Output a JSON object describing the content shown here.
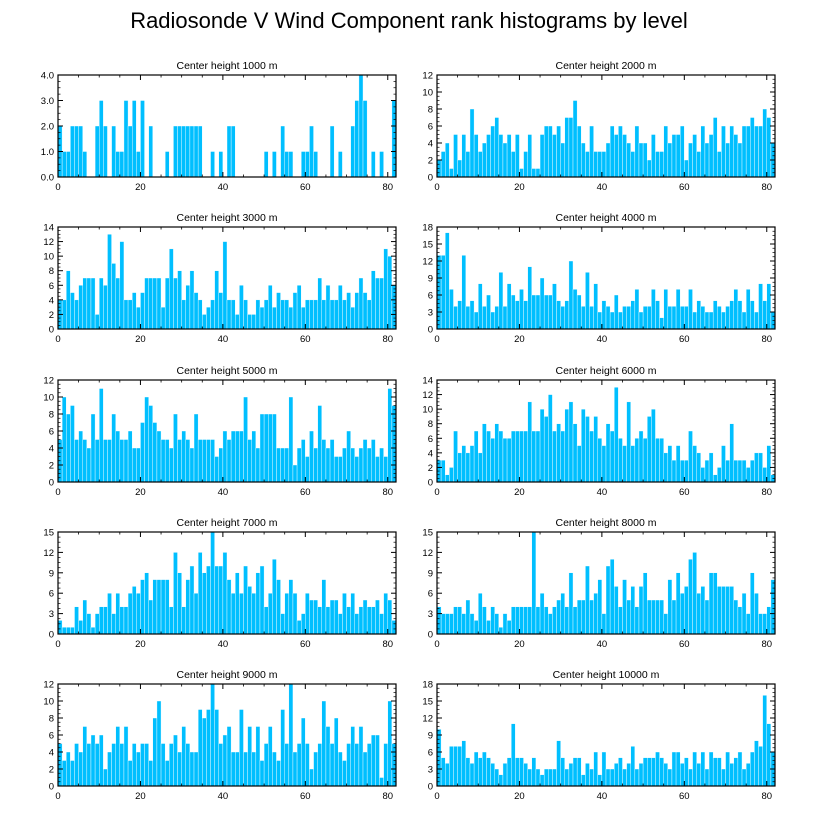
{
  "figure": {
    "title": "Radiosonde V Wind Component rank histograms by level",
    "bar_color": "#00bfff",
    "bar_outline": "#ffffff",
    "axis_color": "#000000"
  },
  "chart_data": [
    {
      "type": "bar",
      "title": "Center height 1000 m",
      "xlim": [
        0,
        82
      ],
      "ylim": [
        0,
        4
      ],
      "xticks": [
        0,
        20,
        40,
        60,
        80
      ],
      "yticks": [
        0,
        1,
        2,
        3,
        4
      ],
      "ytick_labels": [
        "0.0",
        "1.0",
        "2.0",
        "3.0",
        "4.0"
      ],
      "values": [
        2,
        1,
        1,
        2,
        2,
        2,
        1,
        0,
        0,
        2,
        3,
        2,
        0,
        2,
        1,
        1,
        3,
        2,
        3,
        1,
        3,
        0,
        2,
        0,
        0,
        0,
        1,
        0,
        2,
        2,
        2,
        2,
        2,
        2,
        2,
        0,
        0,
        1,
        0,
        1,
        0,
        2,
        2,
        0,
        0,
        0,
        0,
        0,
        0,
        0,
        1,
        0,
        1,
        0,
        2,
        1,
        1,
        0,
        0,
        1,
        1,
        2,
        1,
        0,
        0,
        0,
        2,
        0,
        1,
        0,
        0,
        2,
        3,
        4,
        3,
        0,
        1,
        0,
        1,
        0,
        0,
        3
      ]
    },
    {
      "type": "bar",
      "title": "Center height 2000 m",
      "xlim": [
        0,
        82
      ],
      "ylim": [
        0,
        12
      ],
      "xticks": [
        0,
        20,
        40,
        60,
        80
      ],
      "yticks": [
        0,
        2,
        4,
        6,
        8,
        10,
        12
      ],
      "ytick_labels": [
        "0",
        "2",
        "4",
        "6",
        "8",
        "10",
        "12"
      ],
      "values": [
        2,
        3,
        4,
        1,
        5,
        2,
        5,
        3,
        8,
        5,
        3,
        4,
        5,
        6,
        7,
        5,
        4,
        5,
        3,
        5,
        1,
        3,
        5,
        1,
        1,
        5,
        6,
        6,
        5,
        6,
        4,
        7,
        7,
        9,
        6,
        4,
        3,
        6,
        3,
        3,
        3,
        4,
        6,
        5,
        6,
        5,
        4,
        3,
        6,
        4,
        4,
        2,
        5,
        3,
        3,
        6,
        4,
        5,
        5,
        6,
        2,
        4,
        5,
        3,
        6,
        4,
        5,
        7,
        3,
        6,
        4,
        6,
        5,
        4,
        6,
        6,
        7,
        6,
        6,
        8,
        7,
        4,
        11
      ]
    },
    {
      "type": "bar",
      "title": "Center height 3000 m",
      "xlim": [
        0,
        82
      ],
      "ylim": [
        0,
        14
      ],
      "xticks": [
        0,
        20,
        40,
        60,
        80
      ],
      "yticks": [
        0,
        2,
        4,
        6,
        8,
        10,
        12,
        14
      ],
      "ytick_labels": [
        "0",
        "2",
        "4",
        "6",
        "8",
        "10",
        "12",
        "14"
      ],
      "values": [
        4,
        4,
        8,
        5,
        4,
        6,
        7,
        7,
        7,
        2,
        7,
        6,
        13,
        9,
        7,
        12,
        4,
        4,
        5,
        3,
        5,
        7,
        7,
        7,
        7,
        3,
        7,
        11,
        7,
        8,
        4,
        6,
        8,
        5,
        4,
        2,
        3,
        4,
        8,
        5,
        12,
        4,
        4,
        2,
        6,
        4,
        2,
        2,
        4,
        3,
        4,
        6,
        3,
        5,
        4,
        4,
        3,
        5,
        6,
        3,
        4,
        4,
        4,
        7,
        4,
        6,
        4,
        4,
        6,
        4,
        5,
        3,
        5,
        7,
        5,
        4,
        8,
        7,
        7,
        11,
        10,
        6
      ]
    },
    {
      "type": "bar",
      "title": "Center height 4000 m",
      "xlim": [
        0,
        82
      ],
      "ylim": [
        0,
        18
      ],
      "xticks": [
        0,
        20,
        40,
        60,
        80
      ],
      "yticks": [
        0,
        3,
        6,
        9,
        12,
        15,
        18
      ],
      "ytick_labels": [
        "0",
        "3",
        "6",
        "9",
        "12",
        "15",
        "18"
      ],
      "values": [
        13,
        13,
        17,
        7,
        4,
        5,
        13,
        4,
        5,
        3,
        8,
        4,
        6,
        3,
        4,
        10,
        4,
        8,
        6,
        5,
        7,
        5,
        11,
        6,
        6,
        9,
        6,
        6,
        8,
        5,
        4,
        5,
        12,
        7,
        6,
        4,
        10,
        4,
        8,
        3,
        5,
        4,
        3,
        6,
        3,
        4,
        4,
        5,
        7,
        3,
        4,
        4,
        7,
        5,
        2,
        7,
        4,
        4,
        7,
        4,
        4,
        7,
        3,
        5,
        4,
        3,
        3,
        5,
        4,
        3,
        4,
        5,
        7,
        5,
        3,
        7,
        5,
        3,
        8,
        5,
        8,
        3,
        3
      ]
    },
    {
      "type": "bar",
      "title": "Center height 5000 m",
      "xlim": [
        0,
        82
      ],
      "ylim": [
        0,
        12
      ],
      "xticks": [
        0,
        20,
        40,
        60,
        80
      ],
      "yticks": [
        0,
        2,
        4,
        6,
        8,
        10,
        12
      ],
      "ytick_labels": [
        "0",
        "2",
        "4",
        "6",
        "8",
        "10",
        "12"
      ],
      "values": [
        5,
        10,
        8,
        9,
        5,
        6,
        5,
        4,
        8,
        5,
        11,
        5,
        5,
        8,
        6,
        5,
        5,
        6,
        4,
        4,
        7,
        10,
        9,
        7,
        6,
        5,
        5,
        4,
        8,
        5,
        6,
        5,
        4,
        8,
        5,
        5,
        5,
        5,
        3,
        4,
        6,
        5,
        6,
        6,
        6,
        10,
        5,
        6,
        4,
        8,
        8,
        8,
        8,
        4,
        4,
        4,
        10,
        2,
        4,
        5,
        3,
        6,
        4,
        9,
        5,
        4,
        5,
        3,
        3,
        4,
        6,
        4,
        3,
        4,
        5,
        4,
        5,
        3,
        4,
        3,
        11,
        9
      ]
    },
    {
      "type": "bar",
      "title": "Center height 6000 m",
      "xlim": [
        0,
        82
      ],
      "ylim": [
        0,
        14
      ],
      "xticks": [
        0,
        20,
        40,
        60,
        80
      ],
      "yticks": [
        0,
        2,
        4,
        6,
        8,
        10,
        12,
        14
      ],
      "ytick_labels": [
        "0",
        "2",
        "4",
        "6",
        "8",
        "10",
        "12",
        "14"
      ],
      "values": [
        3,
        3,
        1,
        2,
        7,
        4,
        5,
        4,
        5,
        7,
        4,
        8,
        7,
        6,
        8,
        7,
        6,
        6,
        7,
        7,
        7,
        7,
        11,
        7,
        7,
        10,
        9,
        12,
        7,
        8,
        7,
        10,
        11,
        8,
        5,
        10,
        9,
        7,
        9,
        6,
        5,
        8,
        7,
        13,
        6,
        5,
        11,
        5,
        6,
        7,
        6,
        9,
        10,
        6,
        6,
        4,
        5,
        3,
        5,
        3,
        3,
        7,
        5,
        4,
        2,
        3,
        4,
        1,
        2,
        5,
        3,
        8,
        3,
        3,
        3,
        2,
        3,
        4,
        4,
        2,
        5,
        1
      ]
    },
    {
      "type": "bar",
      "title": "Center height 7000 m",
      "xlim": [
        0,
        82
      ],
      "ylim": [
        0,
        15
      ],
      "xticks": [
        0,
        20,
        40,
        60,
        80
      ],
      "yticks": [
        0,
        3,
        6,
        9,
        12,
        15
      ],
      "ytick_labels": [
        "0",
        "3",
        "6",
        "9",
        "12",
        "15"
      ],
      "values": [
        2,
        1,
        1,
        1,
        4,
        2,
        5,
        3,
        1,
        3,
        4,
        4,
        6,
        3,
        6,
        4,
        4,
        6,
        7,
        6,
        8,
        9,
        5,
        8,
        8,
        8,
        8,
        4,
        12,
        9,
        4,
        8,
        10,
        6,
        12,
        9,
        10,
        15,
        10,
        10,
        12,
        8,
        6,
        9,
        6,
        10,
        7,
        6,
        9,
        10,
        4,
        6,
        11,
        8,
        3,
        6,
        8,
        6,
        2,
        3,
        6,
        5,
        5,
        4,
        8,
        4,
        5,
        5,
        3,
        6,
        4,
        6,
        3,
        4,
        5,
        4,
        4,
        5,
        3,
        6,
        5,
        2
      ]
    },
    {
      "type": "bar",
      "title": "Center height 8000 m",
      "xlim": [
        0,
        82
      ],
      "ylim": [
        0,
        15
      ],
      "xticks": [
        0,
        20,
        40,
        60,
        80
      ],
      "yticks": [
        0,
        3,
        6,
        9,
        12,
        15
      ],
      "ytick_labels": [
        "0",
        "3",
        "6",
        "9",
        "12",
        "15"
      ],
      "values": [
        4,
        3,
        3,
        3,
        4,
        4,
        3,
        5,
        3,
        2,
        6,
        4,
        2,
        4,
        3,
        1,
        3,
        2,
        4,
        4,
        4,
        4,
        4,
        15,
        4,
        6,
        4,
        3,
        4,
        5,
        6,
        4,
        9,
        4,
        5,
        5,
        10,
        5,
        6,
        8,
        3,
        10,
        11,
        7,
        4,
        8,
        5,
        7,
        4,
        7,
        9,
        5,
        5,
        5,
        5,
        3,
        8,
        5,
        9,
        6,
        7,
        11,
        12,
        6,
        7,
        5,
        9,
        9,
        7,
        7,
        7,
        7,
        5,
        4,
        6,
        3,
        9,
        6,
        3,
        3,
        4,
        8,
        5,
        3,
        2,
        5
      ]
    },
    {
      "type": "bar",
      "title": "Center height 9000 m",
      "xlim": [
        0,
        82
      ],
      "ylim": [
        0,
        12
      ],
      "xticks": [
        0,
        20,
        40,
        60,
        80
      ],
      "yticks": [
        0,
        2,
        4,
        6,
        8,
        10,
        12
      ],
      "ytick_labels": [
        "0",
        "2",
        "4",
        "6",
        "8",
        "10",
        "12"
      ],
      "values": [
        5,
        3,
        4,
        3,
        5,
        4,
        7,
        5,
        6,
        5,
        6,
        2,
        4,
        5,
        7,
        5,
        7,
        3,
        5,
        4,
        5,
        5,
        3,
        8,
        10,
        5,
        3,
        5,
        6,
        4,
        7,
        5,
        4,
        4,
        9,
        8,
        9,
        12,
        9,
        5,
        6,
        7,
        4,
        4,
        9,
        4,
        7,
        4,
        7,
        3,
        5,
        7,
        4,
        3,
        9,
        5,
        12,
        4,
        5,
        8,
        5,
        2,
        4,
        5,
        10,
        7,
        5,
        8,
        4,
        3,
        5,
        7,
        5,
        7,
        4,
        5,
        6,
        6,
        1,
        5,
        10,
        5
      ]
    },
    {
      "type": "bar",
      "title": "Center height 10000 m",
      "xlim": [
        0,
        82
      ],
      "ylim": [
        0,
        18
      ],
      "xticks": [
        0,
        20,
        40,
        60,
        80
      ],
      "yticks": [
        0,
        3,
        6,
        9,
        12,
        15,
        18
      ],
      "ytick_labels": [
        "0",
        "3",
        "6",
        "9",
        "12",
        "15",
        "18"
      ],
      "values": [
        10,
        5,
        4,
        7,
        7,
        7,
        8,
        5,
        4,
        6,
        5,
        6,
        5,
        4,
        3,
        2,
        4,
        5,
        11,
        5,
        5,
        4,
        3,
        5,
        3,
        2,
        3,
        3,
        3,
        8,
        5,
        3,
        4,
        5,
        5,
        2,
        4,
        3,
        6,
        2,
        6,
        3,
        3,
        4,
        5,
        3,
        4,
        7,
        3,
        4,
        5,
        5,
        5,
        6,
        5,
        4,
        3,
        6,
        6,
        4,
        5,
        3,
        6,
        4,
        6,
        3,
        6,
        5,
        5,
        3,
        6,
        4,
        5,
        6,
        3,
        4,
        6,
        8,
        7,
        16,
        11,
        6
      ]
    }
  ]
}
